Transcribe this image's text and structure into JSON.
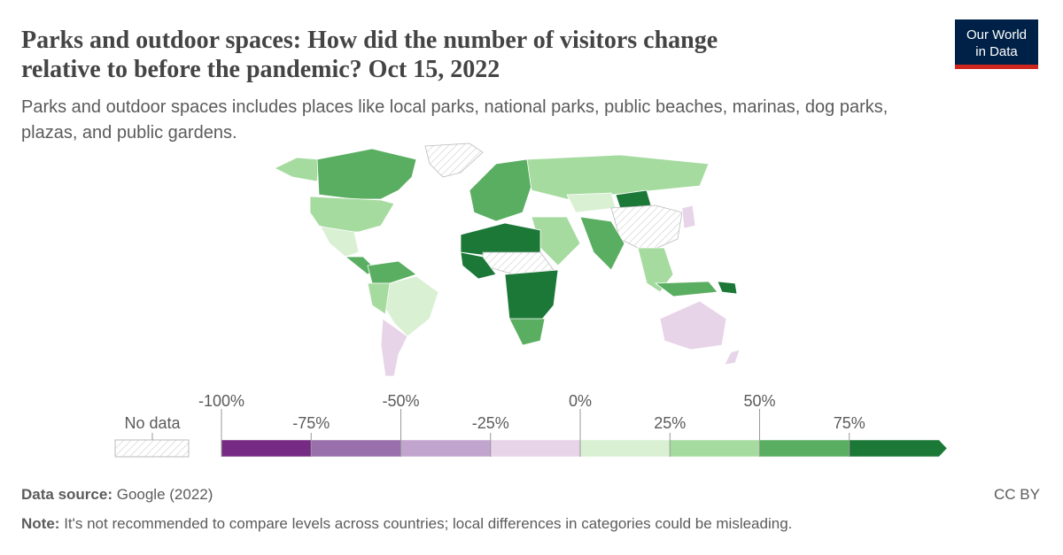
{
  "chart_data": {
    "type": "map",
    "title": [
      "Parks and outdoor spaces: How did the number of visitors change",
      "relative to before the pandemic? Oct 15, 2022"
    ],
    "subtitle": [
      "Parks and outdoor spaces includes places like local parks, national parks, public beaches, marinas, dog parks,",
      "plazas, and public gardens."
    ],
    "legend": {
      "no_data_label": "No data",
      "lim": [
        -100,
        100
      ],
      "ticks": [
        {
          "value": -100,
          "label": "-100%"
        },
        {
          "value": -75,
          "label": "-75%"
        },
        {
          "value": -50,
          "label": "-50%"
        },
        {
          "value": -25,
          "label": "-25%"
        },
        {
          "value": 0,
          "label": "0%"
        },
        {
          "value": 25,
          "label": "25%"
        },
        {
          "value": 50,
          "label": "50%"
        },
        {
          "value": 75,
          "label": "75%"
        }
      ],
      "colors": [
        "#762a83",
        "#9970ab",
        "#c2a5cf",
        "#e7d4e8",
        "#d9f0d3",
        "#a6dba0",
        "#5aae61",
        "#1b7837"
      ]
    }
  },
  "logo": [
    "Our World",
    "in Data"
  ],
  "source": {
    "label": "Data source:",
    "text": "Google (2022)"
  },
  "note": {
    "label": "Note:",
    "text": "It's not recommended to compare levels across countries; local differences in categories could be misleading."
  },
  "license": "CC BY"
}
